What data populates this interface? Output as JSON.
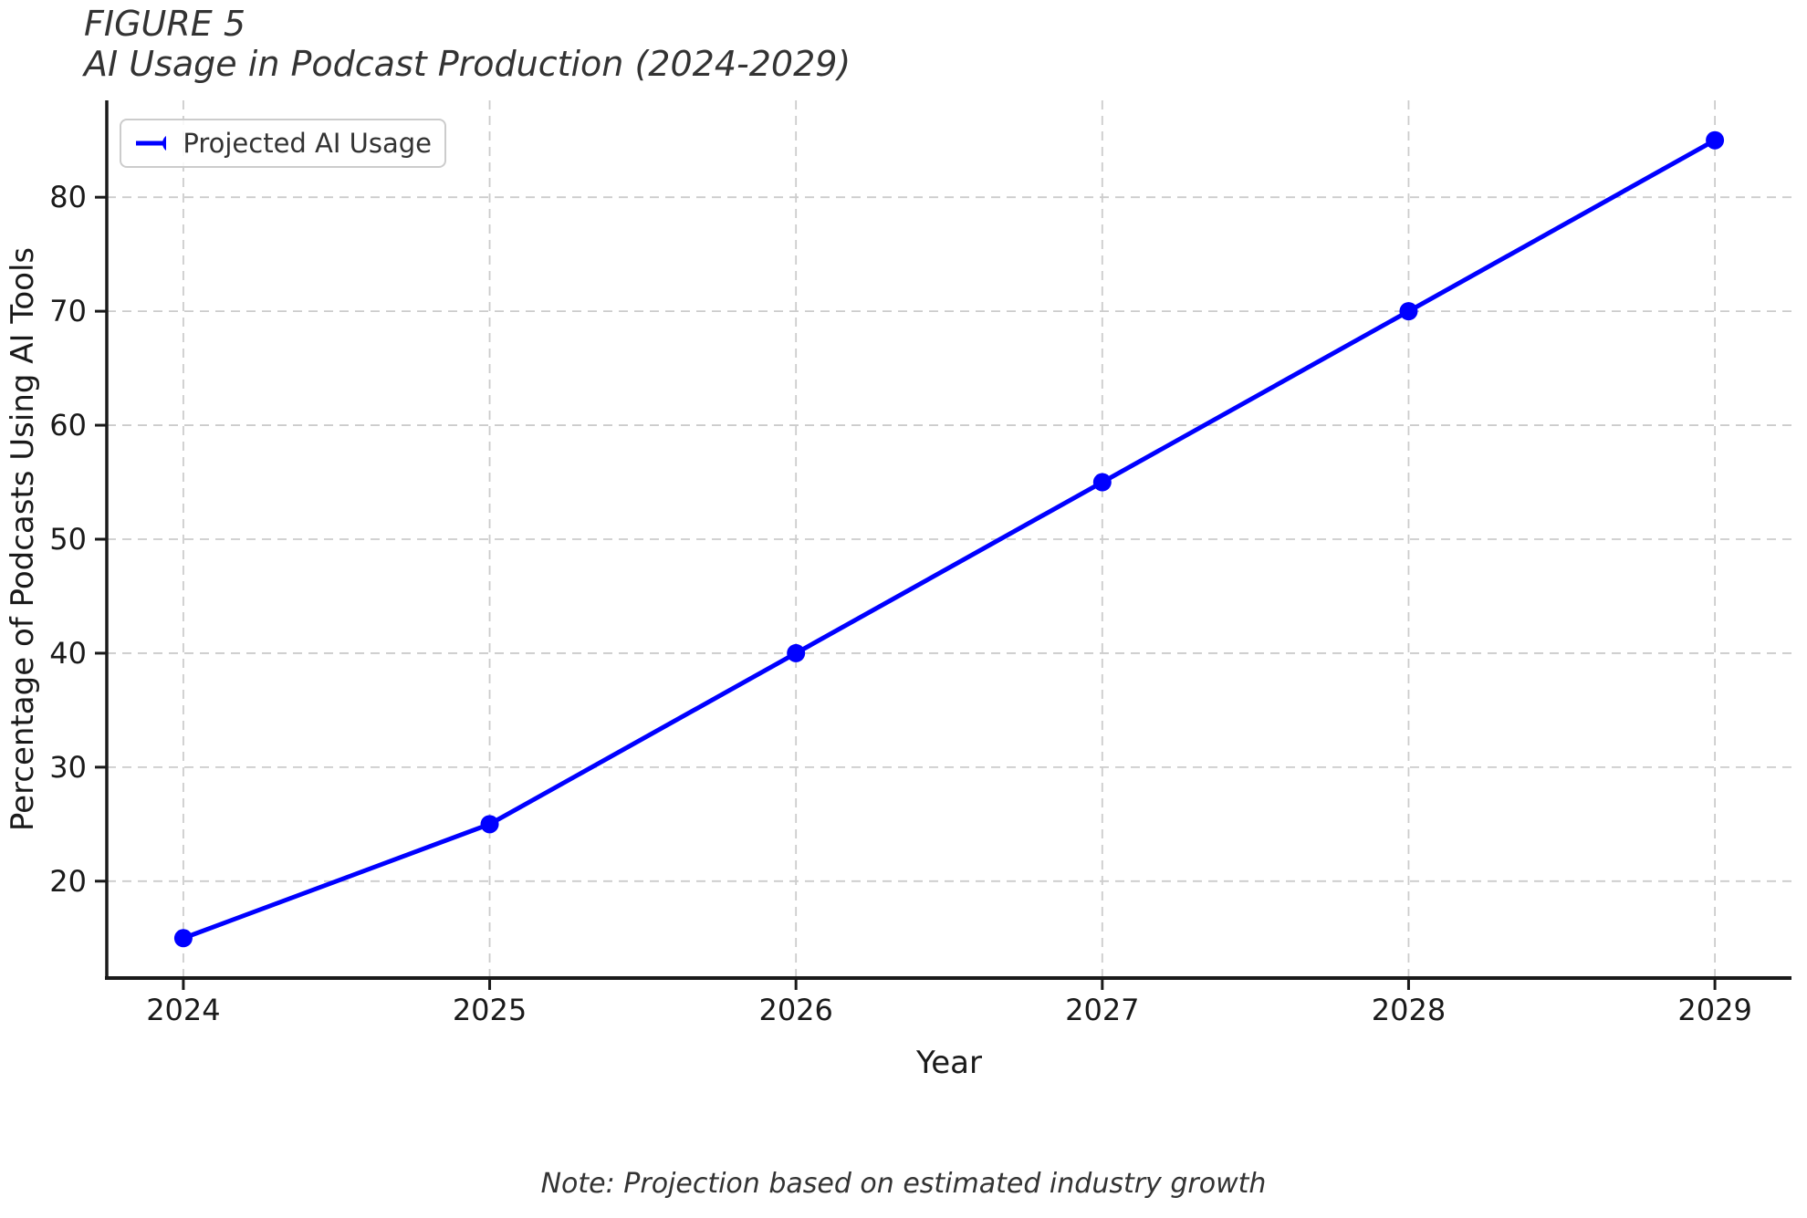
{
  "figure": {
    "figure_label": "FIGURE 5",
    "note": "Note: Projection based on estimated industry growth"
  },
  "chart_data": {
    "type": "line",
    "title": "AI Usage in Podcast Production (2024-2029)",
    "x": [
      2024,
      2025,
      2026,
      2027,
      2028,
      2029
    ],
    "series": [
      {
        "name": "Projected AI Usage",
        "values": [
          15,
          25,
          40,
          55,
          70,
          85
        ]
      }
    ],
    "xlabel": "Year",
    "ylabel": "Percentage of Podcasts Using AI Tools",
    "xticks": [
      2024,
      2025,
      2026,
      2027,
      2028,
      2029
    ],
    "yticks": [
      20,
      30,
      40,
      50,
      60,
      70,
      80
    ],
    "xlim": [
      2023.75,
      2029.25
    ],
    "ylim": [
      11.5,
      88.5
    ],
    "grid": true,
    "grid_style": "dashed",
    "legend_position": "upper left",
    "line_color": "#0000ff",
    "grid_color": "#cccccc",
    "axis_color": "#1a1a1a",
    "text_color": "#333333",
    "note": "Note: Projection based on estimated industry growth"
  }
}
